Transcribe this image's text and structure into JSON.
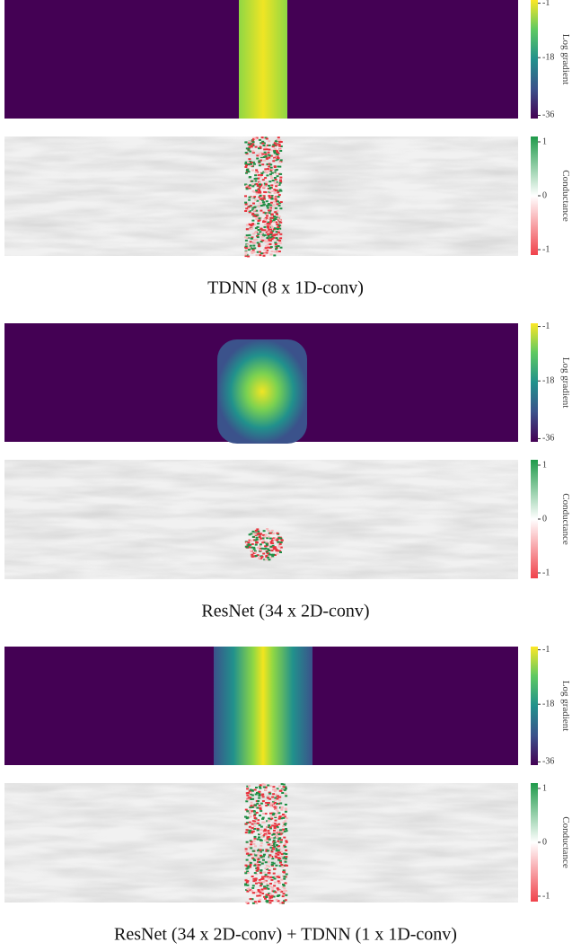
{
  "gradient_colorbar": {
    "label": "Log gradient",
    "lim": [
      -37,
      0
    ],
    "ticks": [
      -1,
      -18,
      -36
    ]
  },
  "conductance_colorbar": {
    "label": "Conductance",
    "lim": [
      -1.1,
      1.1
    ],
    "ticks": [
      1,
      0,
      -1
    ]
  },
  "panels": [
    {
      "caption": "TDNN (8 x 1D-conv)"
    },
    {
      "caption": "ResNet (34 x 2D-conv)"
    },
    {
      "caption": "ResNet (34 x 2D-conv) + TDNN (1 x 1D-conv)"
    }
  ]
}
